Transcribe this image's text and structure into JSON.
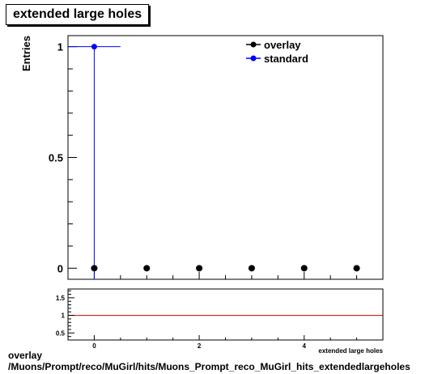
{
  "chart_data": [
    {
      "type": "scatter",
      "title": "extended large holes",
      "xlabel": "",
      "ylabel": "Entries",
      "xlim": [
        -0.5,
        5.5
      ],
      "ylim": [
        -0.05,
        1.05
      ],
      "yticks": [
        0,
        0.5,
        1
      ],
      "yticklabels": [
        "0",
        "0.5",
        "1"
      ],
      "legend_position": "top-right",
      "series": [
        {
          "name": "overlay",
          "color": "#000000",
          "x": [
            0,
            1,
            2,
            3,
            4,
            5
          ],
          "y": [
            0,
            0,
            0,
            0,
            0,
            0
          ]
        },
        {
          "name": "standard",
          "color": "#0000ff",
          "x": [
            0
          ],
          "y": [
            1
          ],
          "xerr": [
            0.5
          ],
          "yerr": [
            1
          ]
        }
      ]
    },
    {
      "type": "line",
      "xlabel": "extended large holes",
      "xlim": [
        -0.5,
        5.5
      ],
      "ylim": [
        0.3,
        1.75
      ],
      "yticks": [
        0.5,
        1,
        1.5
      ],
      "yticklabels": [
        "0.5",
        "1",
        "1.5"
      ],
      "xticks": [
        0,
        2,
        4
      ],
      "xticklabels": [
        "0",
        "2",
        "4"
      ],
      "reference_line": {
        "y": 1,
        "color": "#cc0000"
      }
    }
  ],
  "footer": {
    "line1": "overlay",
    "line2": "/Muons/Prompt/reco/MuGirl/hits/Muons_Prompt_reco_MuGirl_hits_extendedlargeholes"
  }
}
